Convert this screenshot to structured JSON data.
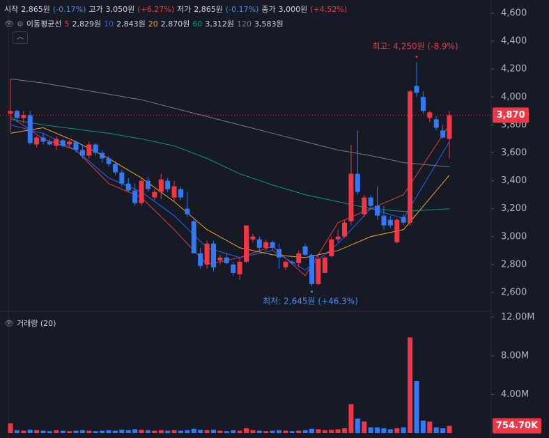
{
  "header": {
    "ohlc": [
      {
        "label": "시작",
        "value": "2,865원",
        "change": "(-0.17%)",
        "dir": "down"
      },
      {
        "label": "고가",
        "value": "3,050원",
        "change": "(+6.27%)",
        "dir": "up"
      },
      {
        "label": "저가",
        "value": "2,865원",
        "change": "(-0.17%)",
        "dir": "down"
      },
      {
        "label": "종가",
        "value": "3,000원",
        "change": "(+4.52%)",
        "dir": "up"
      }
    ],
    "ma_title": "이동평균선"
  },
  "chart_data": [
    {
      "type": "candlestick",
      "ylim": [
        2465,
        4695
      ],
      "yticks": [
        {
          "value": 2600,
          "label": "2,600"
        },
        {
          "value": 2800,
          "label": "2,800"
        },
        {
          "value": 3000,
          "label": "3,000"
        },
        {
          "value": 3200,
          "label": "3,200"
        },
        {
          "value": 3400,
          "label": "3,400"
        },
        {
          "value": 3600,
          "label": "3,600"
        },
        {
          "value": 3800,
          "label": "3,800"
        },
        {
          "value": 4000,
          "label": "4,000"
        },
        {
          "value": 4200,
          "label": "4,200"
        },
        {
          "value": 4400,
          "label": "4,400"
        },
        {
          "value": 4600,
          "label": "4,600"
        }
      ],
      "up_color": "#f23645",
      "down_color": "#3179f5",
      "open": [
        3880,
        3900,
        3850,
        3870,
        3660,
        3710,
        3680,
        3650,
        3690,
        3660,
        3680,
        3620,
        3580,
        3660,
        3600,
        3560,
        3520,
        3460,
        3380,
        3330,
        3240,
        3400,
        3280,
        3320,
        3400,
        3280,
        3340,
        3200,
        3110,
        2880,
        2800,
        2950,
        2830,
        2850,
        2800,
        2730,
        2820,
        2980,
        2980,
        2920,
        2960,
        2910,
        2780,
        2820,
        2810,
        2930,
        2870,
        2660,
        2740,
        2860,
        2980,
        3000,
        3110,
        3450,
        3160,
        3280,
        3220,
        3150,
        3120,
        2960,
        3140,
        3100,
        4080,
        4000,
        3850,
        3840,
        3760,
        3700
      ],
      "high": [
        4130,
        3910,
        3900,
        3900,
        3720,
        3740,
        3700,
        3720,
        3700,
        3690,
        3690,
        3660,
        3680,
        3670,
        3620,
        3580,
        3540,
        3480,
        3420,
        3380,
        3420,
        3430,
        3340,
        3450,
        3420,
        3400,
        3360,
        3320,
        3130,
        2920,
        2970,
        2970,
        2870,
        2880,
        2820,
        2850,
        3080,
        3020,
        3000,
        2980,
        2970,
        2950,
        2830,
        2830,
        2900,
        2950,
        2880,
        2860,
        2860,
        3000,
        3050,
        3120,
        3660,
        3760,
        3300,
        3300,
        3360,
        3220,
        3150,
        3130,
        3160,
        4050,
        4250,
        4040,
        3900,
        3860,
        3800,
        3900
      ],
      "low": [
        3750,
        3820,
        3810,
        3660,
        3640,
        3660,
        3650,
        3620,
        3640,
        3640,
        3600,
        3560,
        3560,
        3580,
        3530,
        3500,
        3440,
        3360,
        3320,
        3220,
        3220,
        3320,
        3260,
        3270,
        3320,
        3250,
        3260,
        3140,
        2880,
        2770,
        2770,
        2750,
        2800,
        2800,
        2720,
        2690,
        2810,
        2960,
        2900,
        2900,
        2900,
        2770,
        2760,
        2800,
        2780,
        2860,
        2645,
        2650,
        2740,
        2850,
        2960,
        2990,
        3080,
        3300,
        3140,
        3200,
        3120,
        3050,
        3060,
        2950,
        3080,
        3080,
        4000,
        3880,
        3820,
        3760,
        3700,
        3560
      ],
      "close": [
        3900,
        3850,
        3870,
        3670,
        3710,
        3680,
        3660,
        3700,
        3650,
        3680,
        3620,
        3580,
        3660,
        3600,
        3560,
        3520,
        3460,
        3380,
        3330,
        3240,
        3400,
        3340,
        3320,
        3410,
        3340,
        3360,
        3280,
        3160,
        2880,
        2790,
        2950,
        2780,
        2850,
        2810,
        2740,
        2820,
        3080,
        3000,
        2920,
        2960,
        2920,
        2850,
        2820,
        2810,
        2880,
        2870,
        2660,
        2840,
        2850,
        2980,
        3000,
        3100,
        3450,
        3320,
        3280,
        3220,
        3150,
        3080,
        3080,
        3120,
        3100,
        4040,
        4030,
        3900,
        3890,
        3780,
        3710,
        3870
      ],
      "series": [
        {
          "name": "5",
          "legend_value": "2,829원",
          "color": "#f23645",
          "x": [
            0,
            5,
            10,
            15,
            20,
            25,
            30,
            35,
            40,
            45,
            50,
            55,
            60,
            67
          ],
          "values": [
            3860,
            3700,
            3620,
            3380,
            3280,
            3050,
            2800,
            2850,
            2930,
            2720,
            3100,
            3200,
            3300,
            3800
          ]
        },
        {
          "name": "10",
          "legend_value": "2,843원",
          "color": "#2962ff",
          "x": [
            0,
            5,
            10,
            15,
            20,
            25,
            30,
            35,
            40,
            45,
            50,
            55,
            60,
            67
          ],
          "values": [
            3800,
            3740,
            3620,
            3420,
            3320,
            3150,
            2920,
            2850,
            2900,
            2760,
            2950,
            3200,
            3130,
            3680
          ]
        },
        {
          "name": "20",
          "legend_value": "2,870원",
          "color": "#f5a623",
          "x": [
            0,
            5,
            10,
            15,
            20,
            25,
            30,
            35,
            40,
            45,
            50,
            55,
            60,
            67
          ],
          "values": [
            3740,
            3780,
            3680,
            3560,
            3420,
            3250,
            3050,
            2920,
            2870,
            2850,
            2900,
            3000,
            3050,
            3440
          ]
        },
        {
          "name": "60",
          "legend_value": "3,312원",
          "color": "#089981",
          "x": [
            0,
            5,
            10,
            15,
            20,
            25,
            30,
            35,
            40,
            45,
            50,
            55,
            60,
            67
          ],
          "values": [
            3840,
            3800,
            3770,
            3740,
            3700,
            3650,
            3560,
            3450,
            3370,
            3300,
            3250,
            3200,
            3180,
            3200
          ]
        },
        {
          "name": "120",
          "legend_value": "3,583원",
          "color": "#787b86",
          "x": [
            0,
            5,
            10,
            15,
            20,
            25,
            30,
            35,
            40,
            45,
            50,
            55,
            60,
            67
          ],
          "values": [
            4130,
            4100,
            4060,
            4020,
            3980,
            3920,
            3860,
            3800,
            3740,
            3680,
            3620,
            3580,
            3530,
            3500
          ]
        }
      ],
      "last_price": {
        "value": 3870,
        "label": "3,870"
      },
      "annotations": [
        {
          "text": "최고: 4,250원 (-8.9%)",
          "value": 4250,
          "kind": "high"
        },
        {
          "text": "최저: 2,645원 (+46.3%)",
          "value": 2645,
          "kind": "low"
        }
      ]
    },
    {
      "type": "bar",
      "title": "거래량 (20)",
      "ylim": [
        0,
        12600000
      ],
      "yticks": [
        {
          "value": 4000000,
          "label": "4.00M"
        },
        {
          "value": 8000000,
          "label": "8.00M"
        },
        {
          "value": 12000000,
          "label": "12.00M"
        }
      ],
      "values": [
        1000000,
        300000,
        250000,
        350000,
        300000,
        250000,
        200000,
        300000,
        250000,
        200000,
        250000,
        300000,
        250000,
        200000,
        250000,
        300000,
        250000,
        350000,
        300000,
        400000,
        350000,
        300000,
        250000,
        300000,
        250000,
        300000,
        250000,
        300000,
        450000,
        350000,
        300000,
        350000,
        250000,
        200000,
        300000,
        250000,
        500000,
        300000,
        250000,
        200000,
        250000,
        300000,
        250000,
        200000,
        250000,
        300000,
        450000,
        400000,
        300000,
        350000,
        400000,
        500000,
        3000000,
        1500000,
        1200000,
        600000,
        600000,
        500000,
        400000,
        500000,
        600000,
        9900000,
        5400000,
        1300000,
        1200000,
        600000,
        500000,
        754700
      ],
      "last_value": {
        "value": 754700,
        "label": "754.70K"
      }
    }
  ]
}
